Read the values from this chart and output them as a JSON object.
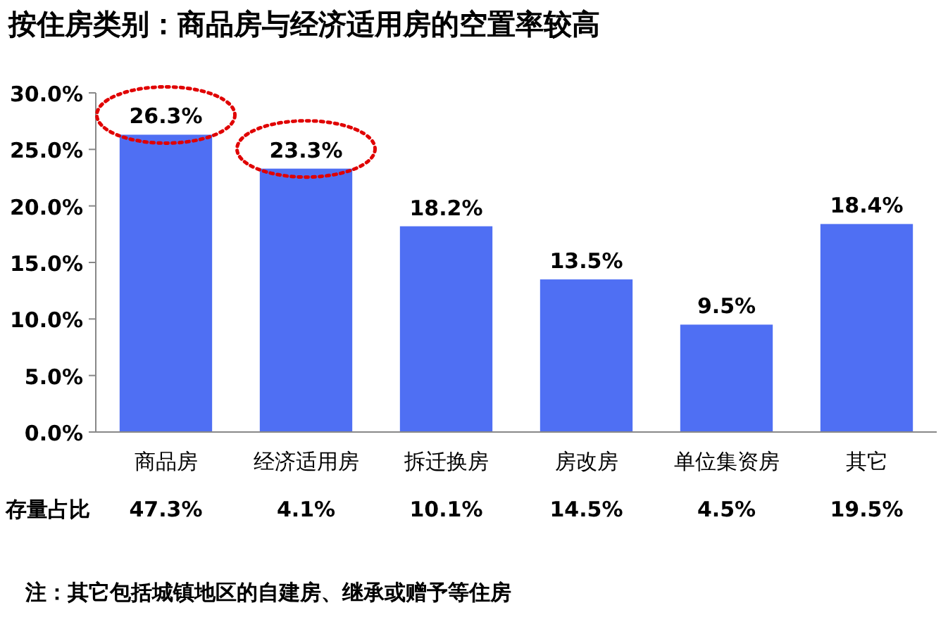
{
  "chart_data": {
    "type": "bar",
    "title": "按住房类别：商品房与经济适用房的空置率较高",
    "categories": [
      "商品房",
      "经济适用房",
      "拆迁换房",
      "房改房",
      "单位集资房",
      "其它"
    ],
    "values": [
      26.3,
      23.3,
      18.2,
      13.5,
      9.5,
      18.4
    ],
    "value_labels": [
      "26.3%",
      "23.3%",
      "18.2%",
      "13.5%",
      "9.5%",
      "18.4%"
    ],
    "color": "#4f6ff3",
    "ylim": [
      0,
      30
    ],
    "yticks": [
      {
        "value": 0,
        "label": "0.0%"
      },
      {
        "value": 5,
        "label": "5.0%"
      },
      {
        "value": 10,
        "label": "10.0%"
      },
      {
        "value": 15,
        "label": "15.0%"
      },
      {
        "value": 20,
        "label": "20.0%"
      },
      {
        "value": 25,
        "label": "25.0%"
      },
      {
        "value": 30,
        "label": "30.0%"
      }
    ],
    "grid": false,
    "annotations": [
      "存量占比",
      "47.3%",
      "4.1%",
      "10.1%",
      "14.5%",
      "4.5%",
      "19.5%",
      "注：其它包括城镇地区的自建房、继承或赠予等住房"
    ]
  }
}
